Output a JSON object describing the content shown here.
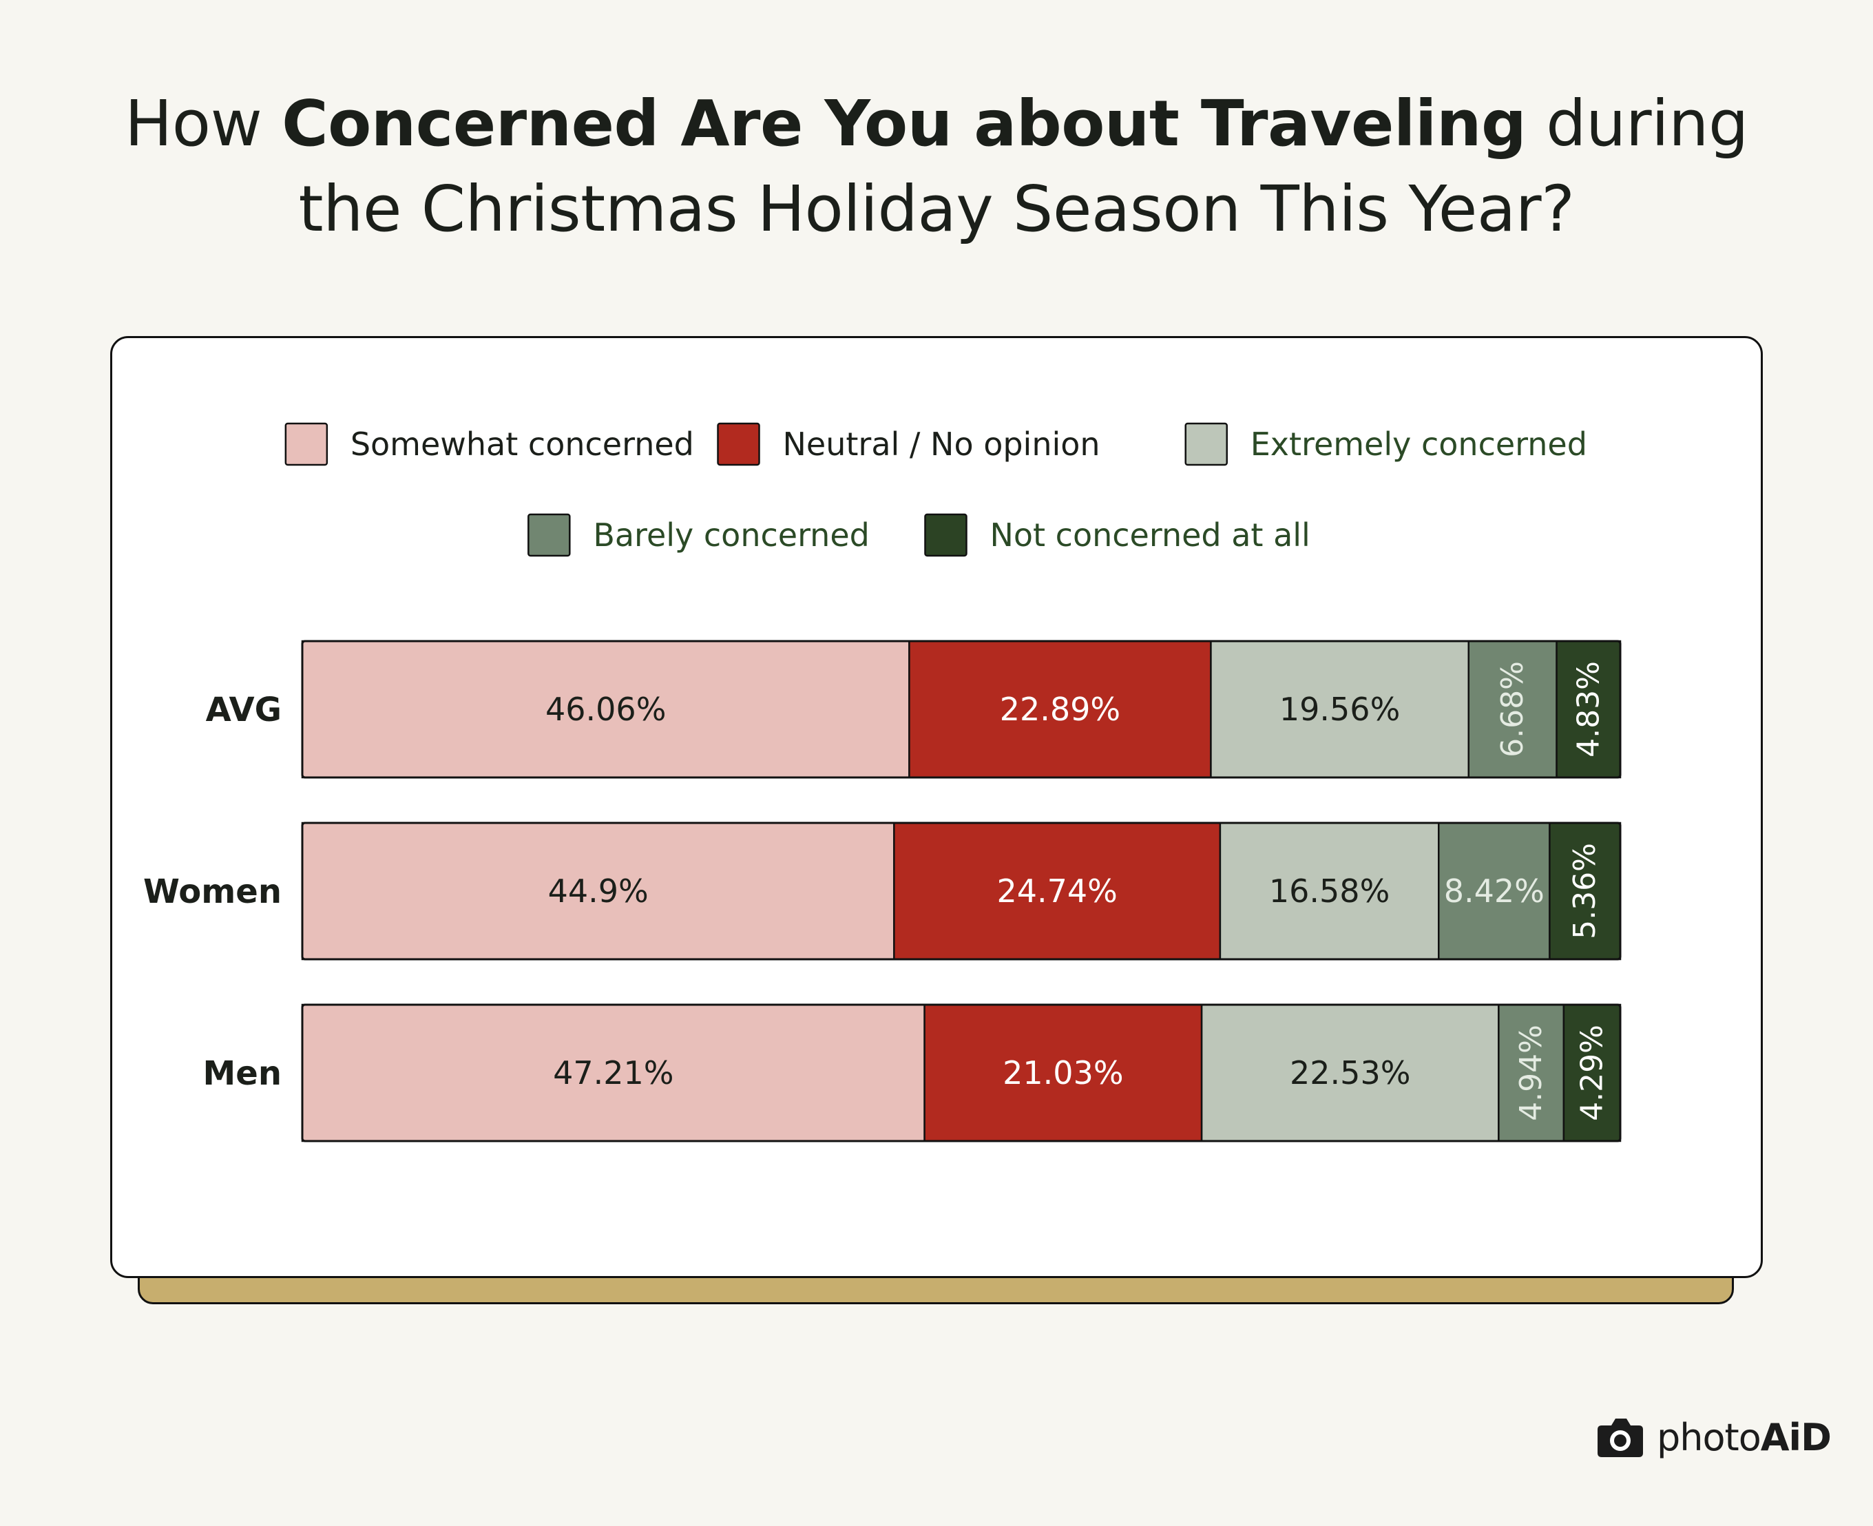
{
  "title": {
    "part1": "How ",
    "bold1": "Concerned Are You about Traveling",
    "part2": " during",
    "line2": "the Christmas Holiday Season This Year?"
  },
  "brand": {
    "light": "photo",
    "strong": "AiD"
  },
  "chart_data": {
    "type": "bar",
    "orientation": "horizontal",
    "stacked": true,
    "legend_position": "top",
    "categories": [
      "AVG",
      "Women",
      "Men"
    ],
    "series": [
      {
        "name": "Somewhat concerned",
        "values": [
          46.06,
          44.9,
          47.21
        ],
        "labels": [
          "46.06%",
          "44.9%",
          "47.21%"
        ],
        "color": "#e8bfba",
        "label_color": "#1b1f1a",
        "legend_text_color": "#1b1f1a"
      },
      {
        "name": "Neutral / No opinion",
        "values": [
          22.89,
          24.74,
          21.03
        ],
        "labels": [
          "22.89%",
          "24.74%",
          "21.03%"
        ],
        "color": "#b22a1f",
        "label_color": "#ffffff",
        "legend_text_color": "#1b1f1a"
      },
      {
        "name": "Extremely concerned",
        "values": [
          19.56,
          16.58,
          22.53
        ],
        "labels": [
          "19.56%",
          "16.58%",
          "22.53%"
        ],
        "color": "#bdc6b9",
        "label_color": "#1b1f1a",
        "legend_text_color": "#2b4a26"
      },
      {
        "name": "Barely concerned",
        "values": [
          6.68,
          8.42,
          4.94
        ],
        "labels": [
          "6.68%",
          "8.42%",
          "4.94%"
        ],
        "color": "#718671",
        "label_color": "#e4ebe2",
        "legend_text_color": "#2b4a26"
      },
      {
        "name": "Not concerned at all",
        "values": [
          4.83,
          5.36,
          4.29
        ],
        "labels": [
          "4.83%",
          "5.36%",
          "4.29%"
        ],
        "color": "#2c4324",
        "label_color": "#ffffff",
        "legend_text_color": "#2b4a26"
      }
    ],
    "label_rotation": [
      [
        false,
        false,
        false,
        true,
        true
      ],
      [
        false,
        false,
        false,
        false,
        true
      ],
      [
        false,
        false,
        false,
        true,
        true
      ]
    ]
  }
}
